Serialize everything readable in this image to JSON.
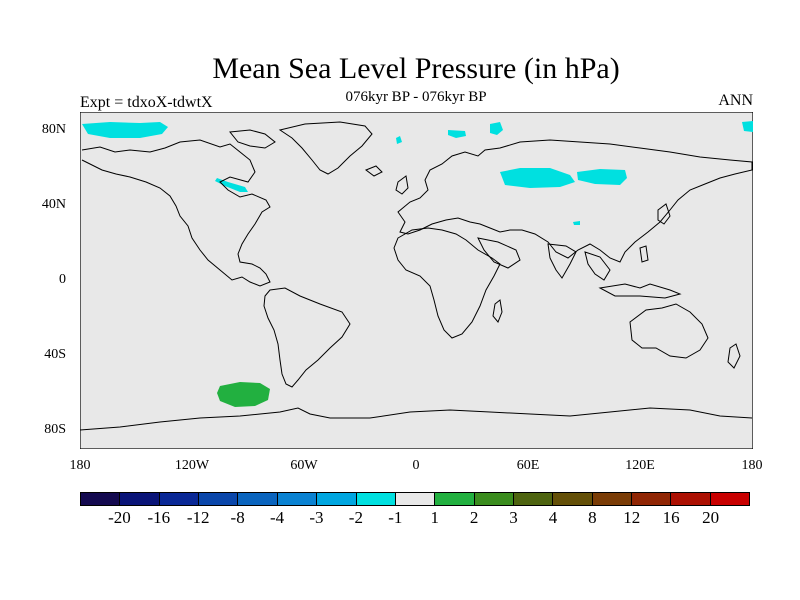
{
  "header": {
    "title": "Mean Sea Level Pressure (in hPa)",
    "subtitle": "076kyr BP - 076kyr BP",
    "left_label": "Expt = tdxoX-tdwtX",
    "right_label": "ANN"
  },
  "map": {
    "background_color": "#e8e8e8",
    "coastline_color": "#000000",
    "lat_ticks": [
      "80N",
      "40N",
      "0",
      "40S",
      "80S"
    ],
    "lon_ticks": [
      "180",
      "120W",
      "60W",
      "0",
      "60E",
      "120E",
      "180"
    ],
    "anomaly_regions": [
      {
        "region": "Arctic Canada / Alaska",
        "class": "-1",
        "color": "#00e0e0"
      },
      {
        "region": "Hudson Bay",
        "class": "-1",
        "color": "#00e0e0"
      },
      {
        "region": "Greenland Sea",
        "class": "-1",
        "color": "#00e0e0"
      },
      {
        "region": "Barents Sea",
        "class": "-1",
        "color": "#00e0e0"
      },
      {
        "region": "Siberia",
        "class": "-1",
        "color": "#00e0e0"
      },
      {
        "region": "Central Asia",
        "class": "-1",
        "color": "#00e0e0"
      },
      {
        "region": "Bering Strait",
        "class": "-1",
        "color": "#00e0e0"
      },
      {
        "region": "South Pacific (Amundsen Sea)",
        "class": "1",
        "color": "#22b040"
      }
    ]
  },
  "colorbar": {
    "colors": [
      "#140a50",
      "#0a1478",
      "#0a2896",
      "#0a46aa",
      "#0a64be",
      "#0a82d2",
      "#00a6e0",
      "#00e0e0",
      "#e8e8e8",
      "#22b040",
      "#3a8c1e",
      "#4e6410",
      "#645008",
      "#7a3c06",
      "#902604",
      "#ac1002",
      "#c80000"
    ],
    "labels": [
      "-20",
      "-16",
      "-12",
      "-8",
      "-4",
      "-3",
      "-2",
      "-1",
      "1",
      "2",
      "3",
      "4",
      "8",
      "12",
      "16",
      "20"
    ]
  }
}
